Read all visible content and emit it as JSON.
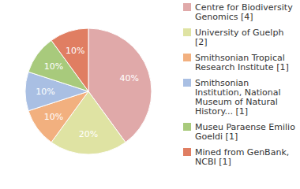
{
  "chart_data": {
    "type": "pie",
    "categories": [
      "Centre for Biodiversity Genomics [4]",
      "University of Guelph [2]",
      "Smithsonian Tropical Research Institute [1]",
      "Smithsonian Institution, National Museum of Natural History... [1]",
      "Museu Paraense Emilio Goeldi [1]",
      "Mined from GenBank, NCBI [1]"
    ],
    "values": [
      40,
      20,
      10,
      10,
      10,
      10
    ],
    "value_labels": [
      "40%",
      "20%",
      "10%",
      "10%",
      "10%",
      "10%"
    ],
    "colors": [
      "#e0a9a9",
      "#dfe3a3",
      "#f2b07f",
      "#a9bfe3",
      "#a8ca7c",
      "#e07e62"
    ],
    "data_labels": true,
    "legend": "right"
  }
}
